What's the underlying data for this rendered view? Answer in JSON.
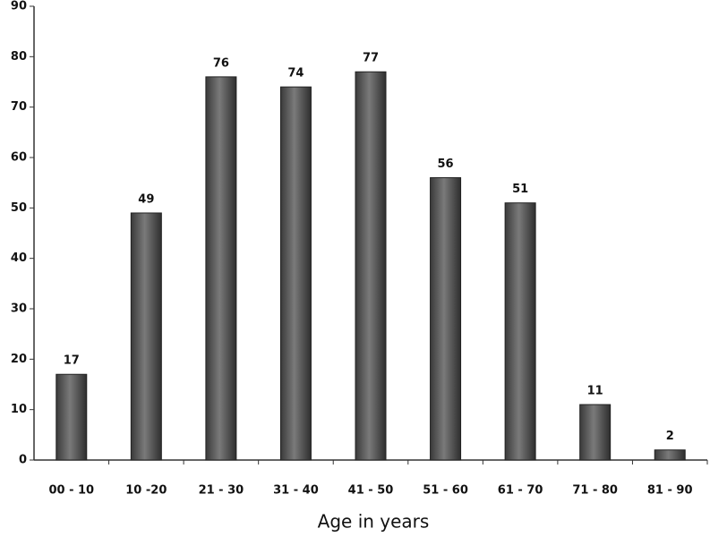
{
  "chart_data": {
    "type": "bar",
    "x_label": "Age in years",
    "categories": [
      "00 - 10",
      "10 -20",
      "21 - 30",
      "31 - 40",
      "41 - 50",
      "51 - 60",
      "61 - 70",
      "71 - 80",
      "81 - 90"
    ],
    "values": [
      17,
      49,
      76,
      74,
      77,
      56,
      51,
      11,
      2
    ],
    "color": "#555555",
    "ylim": [
      0,
      90
    ],
    "yticks": [
      0,
      10,
      20,
      30,
      40,
      50,
      60,
      70,
      80,
      90
    ],
    "grid": false
  }
}
